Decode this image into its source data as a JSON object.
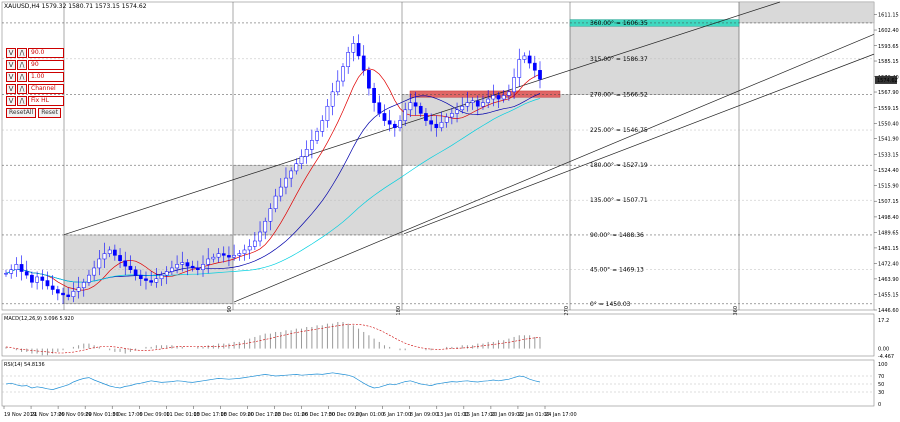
{
  "header": {
    "symbol_text": "XAUUSD,H4  1579.32 1580.71 1573.15 1574.62"
  },
  "controls": {
    "rows": [
      {
        "value": "90.0"
      },
      {
        "value": "90"
      },
      {
        "value": "1.00"
      },
      {
        "value": "Channel"
      },
      {
        "value": "Fix HL"
      }
    ],
    "btn_up": "V",
    "btn_down": "/\\",
    "reset_all": "ResetAll",
    "reset": "Reset"
  },
  "colors": {
    "candle": "#0000ff",
    "ma_fast": "#e00000",
    "ma_slow": "#0000aa",
    "ma_long": "#00d0e0",
    "box": "#d9d9d9",
    "zone_red": "#e06666",
    "zone_teal": "#40d8c0",
    "macd": "#cc0000",
    "rsi": "#1e8fd6"
  },
  "chart_data": {
    "type": "candlestick",
    "y_range": [
      1446.6,
      1618.0
    ],
    "y_ticks": [
      "1611.15",
      "1602.40",
      "1593.65",
      "1585.15",
      "1576.40",
      "1567.90",
      "1559.15",
      "1550.40",
      "1541.90",
      "1533.15",
      "1524.40",
      "1515.90",
      "1507.15",
      "1498.40",
      "1489.65",
      "1481.15",
      "1472.40",
      "1463.90",
      "1455.15",
      "1446.60"
    ],
    "price_label": "1574.62",
    "levels": [
      {
        "label": "360.00° = 1606.35",
        "value": 1606.35,
        "color": "#000"
      },
      {
        "label": "315.00° = 1586.37",
        "value": 1586.37,
        "color": "#999"
      },
      {
        "label": "270.00° = 1566.52",
        "value": 1566.52,
        "color": "#000"
      },
      {
        "label": "225.00° = 1546.75",
        "value": 1546.75,
        "color": "#999"
      },
      {
        "label": "180.00° = 1527.19",
        "value": 1527.19,
        "color": "#000"
      },
      {
        "label": "135.00° = 1507.71",
        "value": 1507.71,
        "color": "#999"
      },
      {
        "label": "90.00° = 1488.36",
        "value": 1488.36,
        "color": "#000"
      },
      {
        "label": "45.00° = 1469.13",
        "value": 1469.13,
        "color": "#999"
      },
      {
        "label": "0° = 1450.03",
        "value": 1450.03,
        "color": "#000"
      }
    ],
    "cycle_labels": [
      "90",
      "180",
      "270",
      "360"
    ],
    "closes": [
      1467,
      1469,
      1472,
      1468,
      1466,
      1462,
      1465,
      1463,
      1460,
      1458,
      1456,
      1455,
      1454,
      1457,
      1459,
      1462,
      1466,
      1470,
      1475,
      1478,
      1480,
      1477,
      1474,
      1471,
      1469,
      1466,
      1464,
      1463,
      1462,
      1464,
      1466,
      1468,
      1470,
      1472,
      1473,
      1471,
      1470,
      1469,
      1472,
      1475,
      1476,
      1478,
      1477,
      1476,
      1477,
      1478,
      1480,
      1482,
      1485,
      1490,
      1496,
      1503,
      1510,
      1515,
      1520,
      1524,
      1528,
      1532,
      1536,
      1541,
      1546,
      1552,
      1560,
      1568,
      1574,
      1582,
      1590,
      1595,
      1588,
      1580,
      1570,
      1562,
      1556,
      1552,
      1550,
      1548,
      1552,
      1558,
      1562,
      1560,
      1556,
      1552,
      1550,
      1548,
      1551,
      1554,
      1556,
      1558,
      1560,
      1562,
      1563,
      1560,
      1562,
      1564,
      1566,
      1564,
      1566,
      1568,
      1576,
      1586,
      1588,
      1584,
      1580,
      1575
    ],
    "macd": {
      "label": "MACD(12,26,9) 3.096 5.920",
      "y_ticks": [
        "17.2",
        "0.00",
        "-4.467"
      ],
      "hist": [
        1,
        0,
        -1,
        -2,
        -2,
        -3,
        -3,
        -4,
        -4,
        -3,
        -2,
        -1,
        0,
        1,
        2,
        3,
        3,
        2,
        1,
        0,
        -1,
        -2,
        -2,
        -3,
        -2,
        -1,
        0,
        1,
        1,
        2,
        2,
        2,
        2,
        1,
        1,
        0,
        0,
        1,
        1,
        2,
        2,
        3,
        3,
        3,
        4,
        4,
        5,
        6,
        7,
        8,
        9,
        9,
        10,
        10,
        11,
        11,
        12,
        12,
        13,
        13,
        14,
        14,
        15,
        15,
        16,
        16,
        15,
        14,
        12,
        10,
        8,
        6,
        4,
        2,
        1,
        0,
        -1,
        -1,
        0,
        0,
        0,
        -1,
        -1,
        0,
        0,
        1,
        1,
        1,
        2,
        2,
        2,
        3,
        3,
        4,
        4,
        5,
        5,
        6,
        7,
        8,
        8,
        8,
        7,
        7
      ]
    },
    "rsi": {
      "label": "RSI(14) 54.8136",
      "y_ticks": [
        "100",
        "70",
        "50",
        "30",
        "0"
      ],
      "values": [
        50,
        52,
        48,
        45,
        46,
        40,
        43,
        41,
        38,
        36,
        40,
        44,
        48,
        55,
        60,
        64,
        66,
        60,
        55,
        50,
        45,
        42,
        40,
        44,
        46,
        50,
        52,
        55,
        58,
        56,
        54,
        55,
        56,
        58,
        57,
        55,
        54,
        56,
        58,
        60,
        62,
        64,
        63,
        62,
        63,
        64,
        66,
        68,
        70,
        72,
        74,
        72,
        70,
        71,
        72,
        73,
        74,
        72,
        73,
        74,
        75,
        74,
        76,
        78,
        76,
        74,
        72,
        68,
        60,
        52,
        45,
        40,
        42,
        46,
        50,
        48,
        52,
        56,
        58,
        54,
        50,
        48,
        46,
        50,
        52,
        54,
        56,
        55,
        57,
        58,
        56,
        55,
        57,
        58,
        60,
        58,
        60,
        62,
        66,
        70,
        68,
        62,
        58,
        55
      ]
    },
    "x_labels": [
      "19 Nov 2019",
      "21 Nov 17:00",
      "26 Nov 09:00",
      "29 Nov 01:00",
      "3 Dec 17:00",
      "6 Dec 09:00",
      "11 Dec 01:00",
      "13 Dec 17:00",
      "18 Dec 09:00",
      "20 Dec 17:00",
      "23 Dec 01:00",
      "26 Dec 17:00",
      "30 Dec 09:00",
      "2 Jan 01:00",
      "6 Jan 17:00",
      "8 Jan 09:00",
      "13 Jan 01:00",
      "15 Jan 17:00",
      "20 Jan 09:00",
      "22 Jan 01:00",
      "24 Jan 17:00"
    ]
  }
}
